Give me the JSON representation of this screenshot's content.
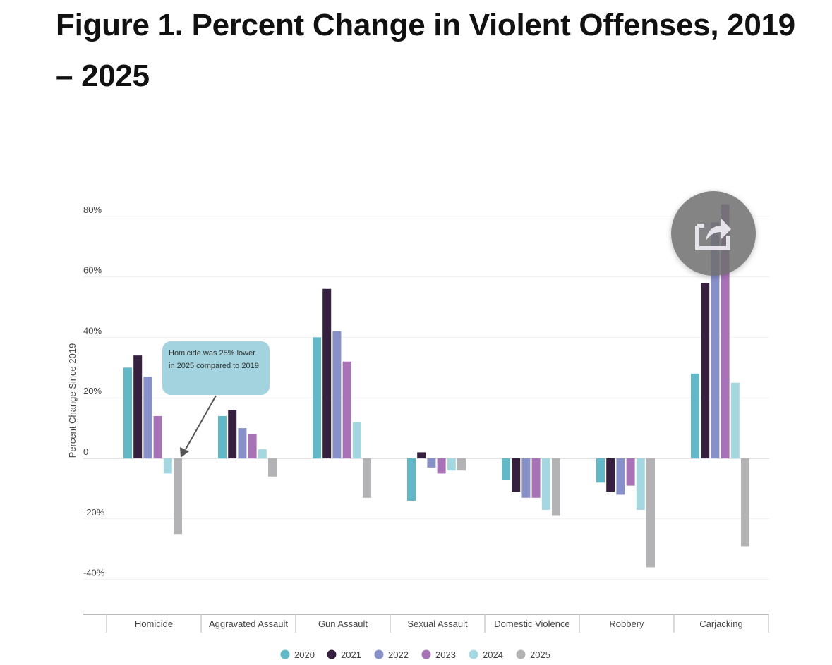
{
  "title": "Figure 1. Percent Change in Violent Offenses, 2019 – 2025",
  "share_button": {
    "icon": "share-icon"
  },
  "annotation": {
    "text": "Homicide was 25% lower in 2025 compared to 2019",
    "color": "#a3d3de",
    "target_category": "Homicide",
    "target_series": "2025"
  },
  "chart_data": {
    "type": "bar",
    "title": "Figure 1. Percent Change in Violent Offenses, 2019 – 2025",
    "xlabel": "",
    "ylabel": "Percent Change Since 2019",
    "ylim": [
      -50,
      85
    ],
    "yticks": [
      -40,
      -20,
      0,
      20,
      40,
      60,
      80
    ],
    "ytick_labels": [
      "-40%",
      "-20%",
      "0",
      "20%",
      "40%",
      "60%",
      "80%"
    ],
    "grid": true,
    "legend_position": "bottom-center",
    "categories": [
      "Homicide",
      "Aggravated Assault",
      "Gun Assault",
      "Sexual Assault",
      "Domestic Violence",
      "Robbery",
      "Carjacking"
    ],
    "series": [
      {
        "name": "2020",
        "color": "#62b8c6",
        "values": [
          30,
          14,
          40,
          -14,
          -7,
          -8,
          28
        ]
      },
      {
        "name": "2021",
        "color": "#35213f",
        "values": [
          34,
          16,
          56,
          2,
          -11,
          -11,
          58
        ]
      },
      {
        "name": "2022",
        "color": "#8890c9",
        "values": [
          27,
          10,
          42,
          -3,
          -13,
          -12,
          78
        ]
      },
      {
        "name": "2023",
        "color": "#a773b6",
        "values": [
          14,
          8,
          32,
          -5,
          -13,
          -9,
          84
        ]
      },
      {
        "name": "2024",
        "color": "#a5d7e0",
        "values": [
          -5,
          3,
          12,
          -4,
          -17,
          -17,
          25
        ]
      },
      {
        "name": "2025",
        "color": "#b3b3b6",
        "values": [
          -25,
          -6,
          -13,
          -4,
          -19,
          -36,
          -29
        ]
      }
    ]
  }
}
